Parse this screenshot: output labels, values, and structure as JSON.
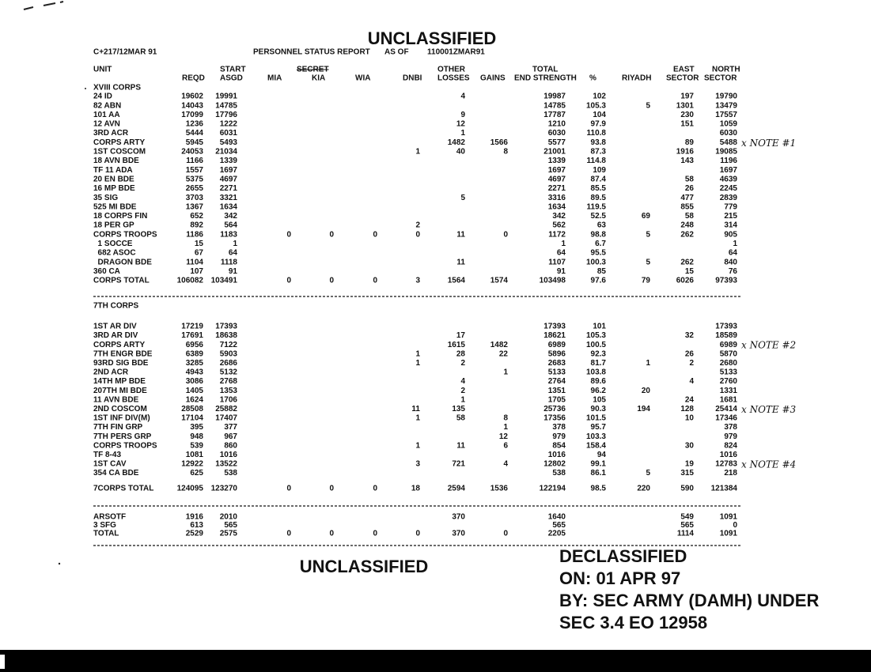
{
  "header": {
    "banner": "UNCLASSIFIED",
    "dtg": "C+217/12MAR 91",
    "report": "PERSONNEL STATUS REPORT",
    "as_of": "AS OF",
    "as_of_time": "110001ZMAR91"
  },
  "columns": {
    "unit": "UNIT",
    "reqd": "REQD",
    "start": "START",
    "asgd": "ASGD",
    "mia": "MIA",
    "secret": "SECRET",
    "kia": "KIA",
    "wia": "WIA",
    "dnbi": "DNBI",
    "other": "OTHER",
    "losses": "LOSSES",
    "gains": "GAINS",
    "end_strength": "END STRENGTH",
    "total": "TOTAL",
    "pct": "%",
    "riyadh": "RIYADH",
    "east": "EAST",
    "east_sector": "SECTOR",
    "north": "NORTH",
    "north_sector": "SECTOR"
  },
  "sections": [
    {
      "heading": "XVIII CORPS",
      "rows": [
        {
          "unit": "24 ID",
          "values": [
            19602,
            19991,
            null,
            null,
            null,
            null,
            4,
            null,
            19987,
            102,
            null,
            197,
            19790
          ]
        },
        {
          "unit": "82 ABN",
          "values": [
            14043,
            14785,
            null,
            null,
            null,
            null,
            null,
            null,
            14785,
            105.3,
            5,
            1301,
            13479
          ]
        },
        {
          "unit": "101 AA",
          "values": [
            17099,
            17796,
            null,
            null,
            null,
            null,
            9,
            null,
            17787,
            104,
            null,
            230,
            17557
          ]
        },
        {
          "unit": "12 AVN",
          "values": [
            1236,
            1222,
            null,
            null,
            null,
            null,
            12,
            null,
            1210,
            97.9,
            null,
            151,
            1059
          ]
        },
        {
          "unit": "3RD ACR",
          "values": [
            5444,
            6031,
            null,
            null,
            null,
            null,
            1,
            null,
            6030,
            110.8,
            null,
            null,
            6030
          ]
        },
        {
          "unit": "CORPS ARTY",
          "values": [
            5945,
            5493,
            null,
            null,
            null,
            null,
            1482,
            1566,
            5577,
            93.8,
            null,
            89,
            5488
          ],
          "note": "x NOTE #1"
        },
        {
          "unit": "1ST COSCOM",
          "values": [
            24053,
            21034,
            null,
            null,
            null,
            1,
            40,
            8,
            21001,
            87.3,
            null,
            1916,
            19085
          ]
        },
        {
          "unit": "18 AVN BDE",
          "values": [
            1166,
            1339,
            null,
            null,
            null,
            null,
            null,
            null,
            1339,
            114.8,
            null,
            143,
            1196
          ]
        },
        {
          "unit": "TF 11 ADA",
          "values": [
            1557,
            1697,
            null,
            null,
            null,
            null,
            null,
            null,
            1697,
            109,
            null,
            null,
            1697
          ]
        },
        {
          "unit": "20 EN BDE",
          "values": [
            5375,
            4697,
            null,
            null,
            null,
            null,
            null,
            null,
            4697,
            87.4,
            null,
            58,
            4639
          ]
        },
        {
          "unit": "16 MP BDE",
          "values": [
            2655,
            2271,
            null,
            null,
            null,
            null,
            null,
            null,
            2271,
            85.5,
            null,
            26,
            2245
          ]
        },
        {
          "unit": "35 SIG",
          "values": [
            3703,
            3321,
            null,
            null,
            null,
            null,
            5,
            null,
            3316,
            89.5,
            null,
            477,
            2839
          ]
        },
        {
          "unit": "525 MI BDE",
          "values": [
            1367,
            1634,
            null,
            null,
            null,
            null,
            null,
            null,
            1634,
            119.5,
            null,
            855,
            779
          ]
        },
        {
          "unit": "18 CORPS FIN",
          "values": [
            652,
            342,
            null,
            null,
            null,
            null,
            null,
            null,
            342,
            52.5,
            69,
            58,
            215
          ]
        },
        {
          "unit": "18 PER GP",
          "values": [
            892,
            564,
            null,
            null,
            null,
            2,
            null,
            null,
            562,
            63,
            null,
            248,
            314
          ]
        },
        {
          "unit": "CORPS TROOPS",
          "values": [
            1186,
            1183,
            0,
            0,
            0,
            0,
            11,
            0,
            1172,
            98.8,
            5,
            262,
            905
          ]
        },
        {
          "unit": "  1 SOCCE",
          "values": [
            15,
            1,
            null,
            null,
            null,
            null,
            null,
            null,
            1,
            6.7,
            null,
            null,
            1
          ]
        },
        {
          "unit": "  682 ASOC",
          "values": [
            67,
            64,
            null,
            null,
            null,
            null,
            null,
            null,
            64,
            95.5,
            null,
            null,
            64
          ]
        },
        {
          "unit": "  DRAGON BDE",
          "values": [
            1104,
            1118,
            null,
            null,
            null,
            null,
            11,
            null,
            1107,
            100.3,
            5,
            262,
            840
          ]
        },
        {
          "unit": "360 CA",
          "values": [
            107,
            91,
            null,
            null,
            null,
            null,
            null,
            null,
            91,
            85,
            null,
            15,
            76
          ]
        },
        {
          "unit": "CORPS TOTAL",
          "values": [
            106082,
            103491,
            0,
            0,
            0,
            3,
            1564,
            1574,
            103498,
            97.6,
            79,
            6026,
            97393
          ]
        }
      ]
    },
    {
      "heading": "7TH CORPS",
      "rows": [
        {
          "unit": "1ST AR DIV",
          "values": [
            17219,
            17393,
            null,
            null,
            null,
            null,
            null,
            null,
            17393,
            101,
            null,
            null,
            17393
          ]
        },
        {
          "unit": "3RD AR DIV",
          "values": [
            17691,
            18638,
            null,
            null,
            null,
            null,
            17,
            null,
            18621,
            105.3,
            null,
            32,
            18589
          ]
        },
        {
          "unit": "CORPS ARTY",
          "values": [
            6956,
            7122,
            null,
            null,
            null,
            null,
            1615,
            1482,
            6989,
            100.5,
            null,
            null,
            6989
          ],
          "note": "x NOTE #2"
        },
        {
          "unit": "7TH ENGR BDE",
          "values": [
            6389,
            5903,
            null,
            null,
            null,
            1,
            28,
            22,
            5896,
            92.3,
            null,
            26,
            5870
          ]
        },
        {
          "unit": "93RD SIG BDE",
          "values": [
            3285,
            2686,
            null,
            null,
            null,
            1,
            2,
            null,
            2683,
            81.7,
            1,
            2,
            2680
          ]
        },
        {
          "unit": "2ND ACR",
          "values": [
            4943,
            5132,
            null,
            null,
            null,
            null,
            null,
            1,
            5133,
            103.8,
            null,
            null,
            5133
          ]
        },
        {
          "unit": "14TH MP BDE",
          "values": [
            3086,
            2768,
            null,
            null,
            null,
            null,
            4,
            null,
            2764,
            89.6,
            null,
            4,
            2760
          ]
        },
        {
          "unit": "207TH MI BDE",
          "values": [
            1405,
            1353,
            null,
            null,
            null,
            null,
            2,
            null,
            1351,
            96.2,
            20,
            null,
            1331
          ]
        },
        {
          "unit": "11 AVN BDE",
          "values": [
            1624,
            1706,
            null,
            null,
            null,
            null,
            1,
            null,
            1705,
            105,
            null,
            24,
            1681
          ]
        },
        {
          "unit": "2ND COSCOM",
          "values": [
            28508,
            25882,
            null,
            null,
            null,
            11,
            135,
            null,
            25736,
            90.3,
            194,
            128,
            25414
          ],
          "note": "x NOTE #3"
        },
        {
          "unit": "1ST INF DIV(M)",
          "values": [
            17104,
            17407,
            null,
            null,
            null,
            1,
            58,
            8,
            17356,
            101.5,
            null,
            10,
            17346
          ]
        },
        {
          "unit": "7TH FIN GRP",
          "values": [
            395,
            377,
            null,
            null,
            null,
            null,
            null,
            1,
            378,
            95.7,
            null,
            null,
            378
          ]
        },
        {
          "unit": "7TH PERS GRP",
          "values": [
            948,
            967,
            null,
            null,
            null,
            null,
            null,
            12,
            979,
            103.3,
            null,
            null,
            979
          ]
        },
        {
          "unit": "CORPS TROOPS",
          "values": [
            539,
            860,
            null,
            null,
            null,
            1,
            11,
            6,
            854,
            158.4,
            null,
            30,
            824
          ]
        },
        {
          "unit": "TF 8-43",
          "values": [
            1081,
            1016,
            null,
            null,
            null,
            null,
            null,
            null,
            1016,
            94,
            null,
            null,
            1016
          ]
        },
        {
          "unit": "1ST CAV",
          "values": [
            12922,
            13522,
            null,
            null,
            null,
            3,
            721,
            4,
            12802,
            99.1,
            null,
            19,
            12783
          ],
          "note": "x NOTE #4"
        },
        {
          "unit": "354 CA BDE",
          "values": [
            625,
            538,
            null,
            null,
            null,
            null,
            null,
            null,
            538,
            86.1,
            5,
            315,
            218
          ]
        },
        {
          "unit": "7CORPS TOTAL",
          "values": [
            124095,
            123270,
            0,
            0,
            0,
            18,
            2594,
            1536,
            122194,
            98.5,
            220,
            590,
            121384
          ]
        }
      ]
    },
    {
      "rows": [
        {
          "unit": "ARSOTF",
          "values": [
            1916,
            2010,
            null,
            null,
            null,
            null,
            370,
            null,
            1640,
            null,
            null,
            549,
            1091
          ]
        },
        {
          "unit": "3 SFG",
          "values": [
            613,
            565,
            null,
            null,
            null,
            null,
            null,
            null,
            565,
            null,
            null,
            565,
            0
          ]
        },
        {
          "unit": "TOTAL",
          "values": [
            2529,
            2575,
            0,
            0,
            0,
            0,
            370,
            0,
            2205,
            null,
            null,
            1114,
            1091
          ]
        }
      ]
    }
  ],
  "footer": {
    "banner": "UNCLASSIFIED",
    "declass": [
      "DECLASSIFIED",
      "ON: 01 APR 97",
      "BY: SEC ARMY (DAMH) UNDER",
      "SEC 3.4 EO 12958"
    ]
  }
}
